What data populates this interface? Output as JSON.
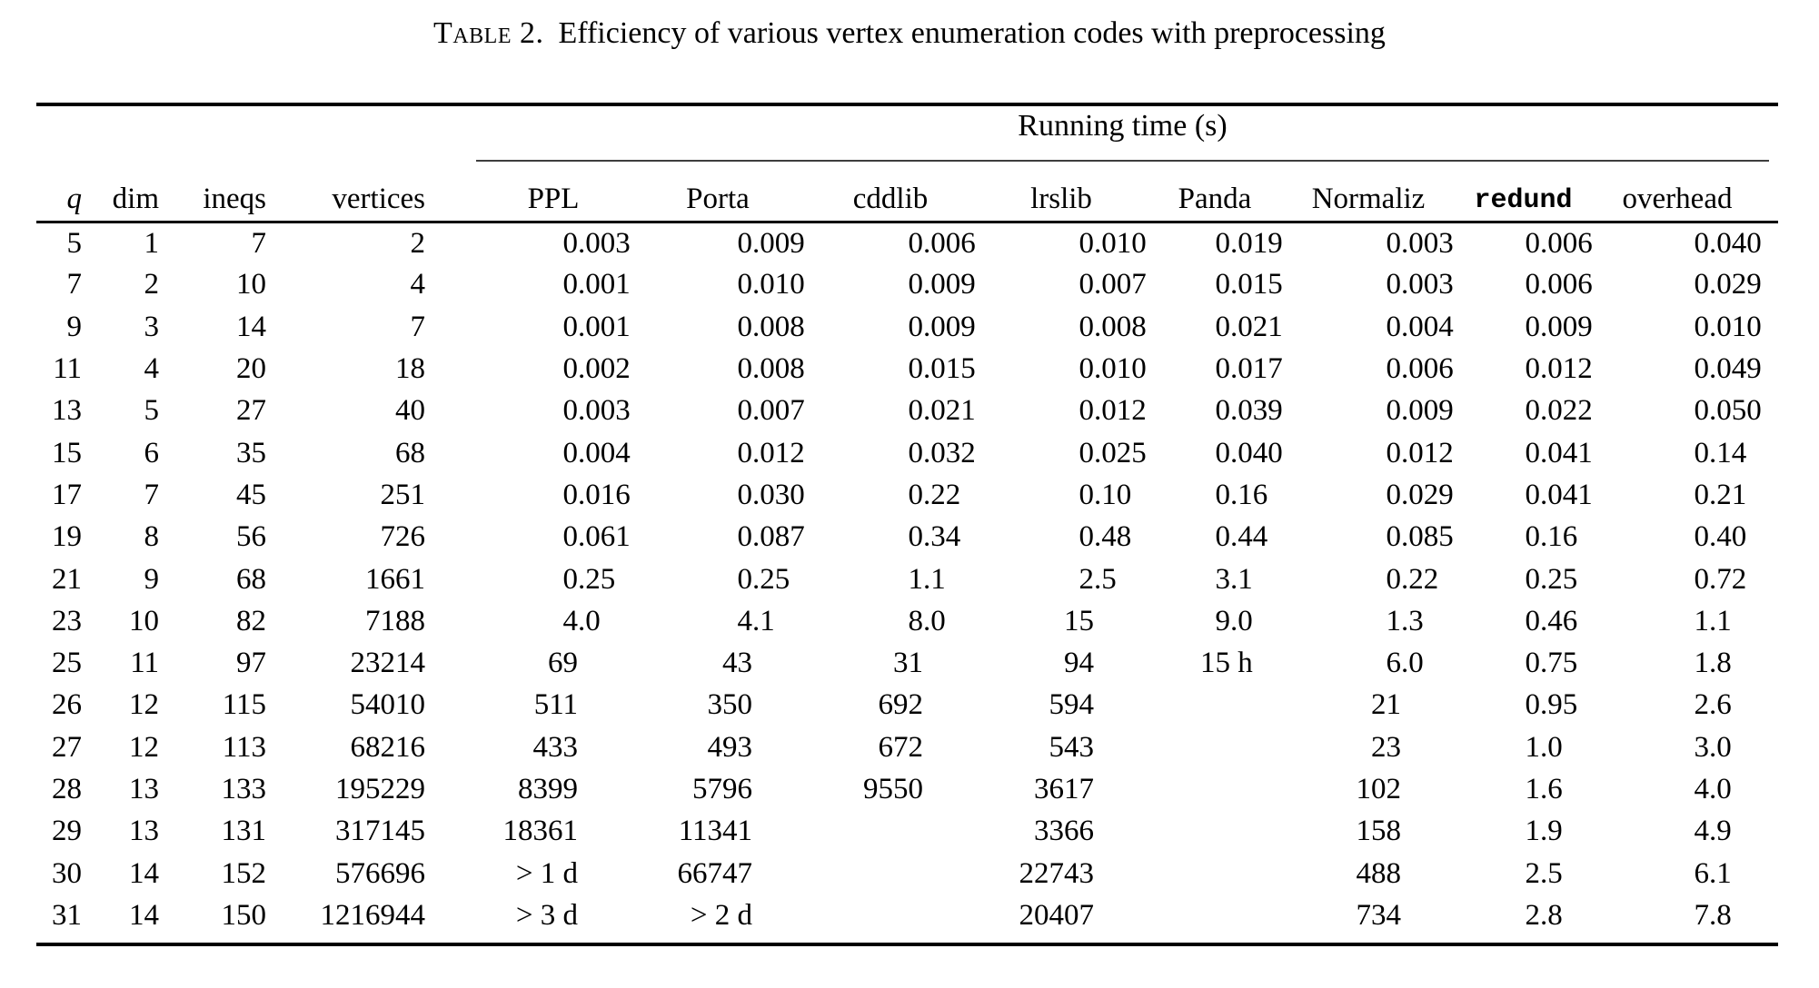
{
  "theme": {
    "ink": "#000000",
    "background": "#ffffff"
  },
  "title": {
    "tag": "Table 2.",
    "caption": "Efficiency of various vertex enumeration codes with preprocessing"
  },
  "table": {
    "group_header": "Running time (s)",
    "columns": [
      "q",
      "dim",
      "ineqs",
      "vertices",
      "PPL",
      "Porta",
      "cddlib",
      "lrslib",
      "Panda",
      "Normaliz",
      "redund",
      "overhead"
    ],
    "rows": [
      [
        "5",
        "1",
        "7",
        "2",
        "0.003",
        "0.009",
        "0.006",
        "0.010",
        "0.019",
        "0.003",
        "0.006",
        "0.040"
      ],
      [
        "7",
        "2",
        "10",
        "4",
        "0.001",
        "0.010",
        "0.009",
        "0.007",
        "0.015",
        "0.003",
        "0.006",
        "0.029"
      ],
      [
        "9",
        "3",
        "14",
        "7",
        "0.001",
        "0.008",
        "0.009",
        "0.008",
        "0.021",
        "0.004",
        "0.009",
        "0.010"
      ],
      [
        "11",
        "4",
        "20",
        "18",
        "0.002",
        "0.008",
        "0.015",
        "0.010",
        "0.017",
        "0.006",
        "0.012",
        "0.049"
      ],
      [
        "13",
        "5",
        "27",
        "40",
        "0.003",
        "0.007",
        "0.021",
        "0.012",
        "0.039",
        "0.009",
        "0.022",
        "0.050"
      ],
      [
        "15",
        "6",
        "35",
        "68",
        "0.004",
        "0.012",
        "0.032",
        "0.025",
        "0.040",
        "0.012",
        "0.041",
        "0.14"
      ],
      [
        "17",
        "7",
        "45",
        "251",
        "0.016",
        "0.030",
        "0.22",
        "0.10",
        "0.16",
        "0.029",
        "0.041",
        "0.21"
      ],
      [
        "19",
        "8",
        "56",
        "726",
        "0.061",
        "0.087",
        "0.34",
        "0.48",
        "0.44",
        "0.085",
        "0.16",
        "0.40"
      ],
      [
        "21",
        "9",
        "68",
        "1661",
        "0.25",
        "0.25",
        "1.1",
        "2.5",
        "3.1",
        "0.22",
        "0.25",
        "0.72"
      ],
      [
        "23",
        "10",
        "82",
        "7188",
        "4.0",
        "4.1",
        "8.0",
        "15",
        "9.0",
        "1.3",
        "0.46",
        "1.1"
      ],
      [
        "25",
        "11",
        "97",
        "23214",
        "69",
        "43",
        "31",
        "94",
        "15 h",
        "6.0",
        "0.75",
        "1.8"
      ],
      [
        "26",
        "12",
        "115",
        "54010",
        "511",
        "350",
        "692",
        "594",
        "",
        "21",
        "0.95",
        "2.6"
      ],
      [
        "27",
        "12",
        "113",
        "68216",
        "433",
        "493",
        "672",
        "543",
        "",
        "23",
        "1.0",
        "3.0"
      ],
      [
        "28",
        "13",
        "133",
        "195229",
        "8399",
        "5796",
        "9550",
        "3617",
        "",
        "102",
        "1.6",
        "4.0"
      ],
      [
        "29",
        "13",
        "131",
        "317145",
        "18361",
        "11341",
        "",
        "3366",
        "",
        "158",
        "1.9",
        "4.9"
      ],
      [
        "30",
        "14",
        "152",
        "576696",
        "> 1 d",
        "66747",
        "",
        "22743",
        "",
        "488",
        "2.5",
        "6.1"
      ],
      [
        "31",
        "14",
        "150",
        "1216944",
        "> 3 d",
        "> 2 d",
        "",
        "20407",
        "",
        "734",
        "2.8",
        "7.8"
      ]
    ]
  }
}
